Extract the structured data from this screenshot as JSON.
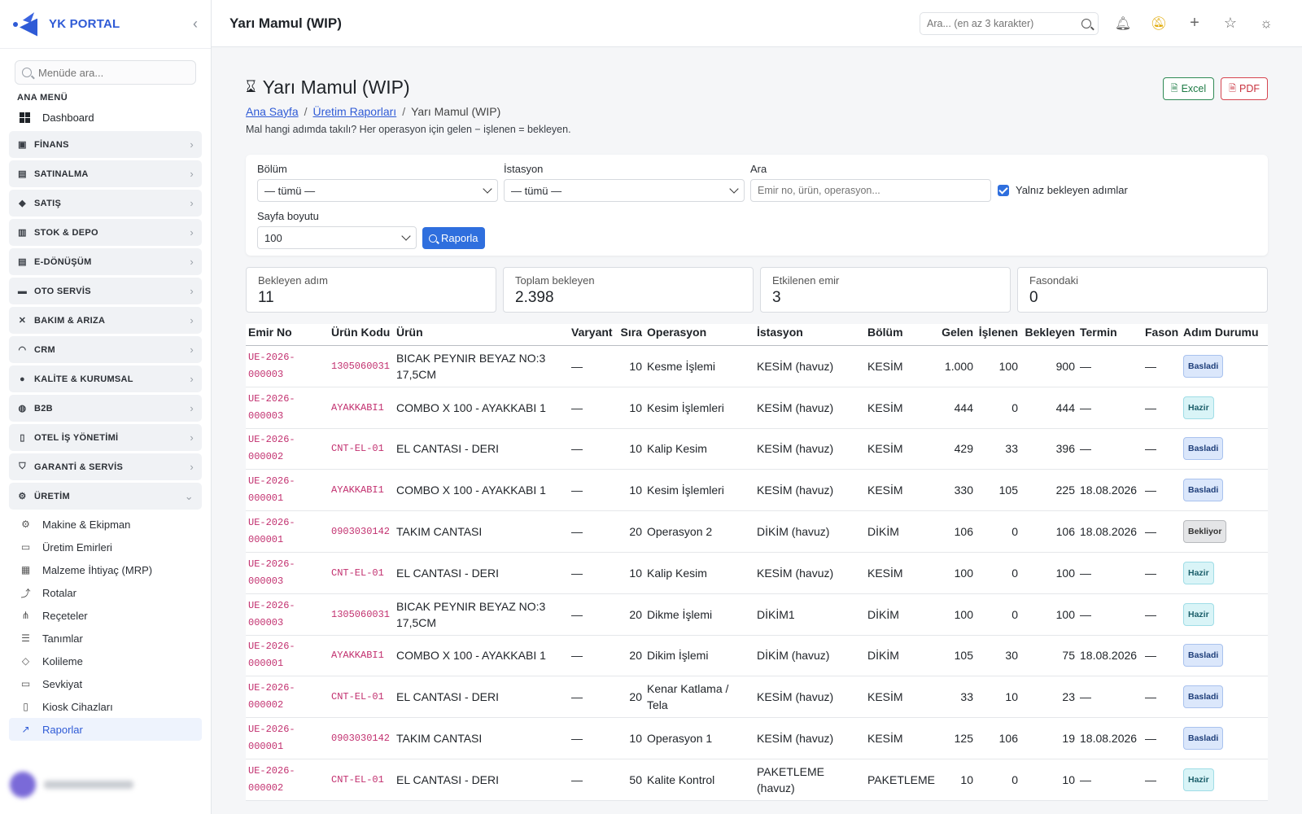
{
  "sidebar": {
    "brand": "YK PORTAL",
    "search_placeholder": "Menüde ara...",
    "heading": "ANA MENÜ",
    "dashboard": "Dashboard",
    "groups": [
      {
        "label": "FİNANS",
        "icon": "finance-icon"
      },
      {
        "label": "SATINALMA",
        "icon": "bag-icon"
      },
      {
        "label": "SATIŞ",
        "icon": "tag-icon"
      },
      {
        "label": "STOK & DEPO",
        "icon": "box-icon"
      },
      {
        "label": "E-DÖNÜŞÜM",
        "icon": "document-icon"
      },
      {
        "label": "OTO SERVİS",
        "icon": "car-icon"
      },
      {
        "label": "BAKIM & ARIZA",
        "icon": "tools-icon"
      },
      {
        "label": "CRM",
        "icon": "headset-icon"
      },
      {
        "label": "KALİTE & KURUMSAL",
        "icon": "badge-check-icon"
      },
      {
        "label": "B2B",
        "icon": "globe-icon"
      },
      {
        "label": "OTEL İŞ YÖNETİMİ",
        "icon": "building-icon"
      },
      {
        "label": "GARANTİ & SERVİS",
        "icon": "shield-icon"
      },
      {
        "label": "ÜRETİM",
        "icon": "gear-icon"
      }
    ],
    "sub_items": [
      {
        "label": "Makine & Ekipman",
        "icon": "gear-icon"
      },
      {
        "label": "Üretim Emirleri",
        "icon": "clipboard-icon"
      },
      {
        "label": "Malzeme İhtiyaç (MRP)",
        "icon": "calculator-icon"
      },
      {
        "label": "Rotalar",
        "icon": "signpost-icon"
      },
      {
        "label": "Reçeteler",
        "icon": "diagram-icon"
      },
      {
        "label": "Tanımlar",
        "icon": "sliders-icon"
      },
      {
        "label": "Kolileme",
        "icon": "package-icon"
      },
      {
        "label": "Sevkiyat",
        "icon": "truck-icon"
      },
      {
        "label": "Kiosk Cihazları",
        "icon": "tablet-icon"
      },
      {
        "label": "Raporlar",
        "icon": "chart-icon"
      }
    ]
  },
  "topbar": {
    "title": "Yarı Mamul (WIP)",
    "search_placeholder": "Ara... (en az 3 karakter)"
  },
  "page": {
    "title": "Yarı Mamul (WIP)",
    "breadcrumb": [
      "Ana Sayfa",
      "Üretim Raporları",
      "Yarı Mamul (WIP)"
    ],
    "description": "Mal hangi adımda takılı? Her operasyon için gelen − işlenen = bekleyen.",
    "excel": "Excel",
    "pdf": "PDF"
  },
  "filters": {
    "bolum_label": "Bölüm",
    "bolum_value": "— tümü —",
    "istasyon_label": "İstasyon",
    "istasyon_value": "— tümü —",
    "ara_label": "Ara",
    "ara_placeholder": "Emir no, ürün, operasyon...",
    "only_pending": "Yalnız bekleyen adımlar",
    "page_size_label": "Sayfa boyutu",
    "page_size_value": "100",
    "report_button": "Raporla"
  },
  "kpis": [
    {
      "label": "Bekleyen adım",
      "value": "11"
    },
    {
      "label": "Toplam bekleyen",
      "value": "2.398"
    },
    {
      "label": "Etkilenen emir",
      "value": "3"
    },
    {
      "label": "Fasondaki",
      "value": "0"
    }
  ],
  "table": {
    "headers": [
      "Emir No",
      "Ürün Kodu",
      "Ürün",
      "Varyant",
      "Sıra",
      "Operasyon",
      "İstasyon",
      "Bölüm",
      "Gelen",
      "İşlenen",
      "Bekleyen",
      "Termin",
      "Fason",
      "Adım Durumu"
    ],
    "rows": [
      {
        "emir": "UE-2026-000003",
        "kod": "1305060031",
        "urun": "BICAK PEYNIR BEYAZ NO:3 17,5CM",
        "varyant": "—",
        "sira": "10",
        "op": "Kesme İşlemi",
        "ist": "KESİM (havuz)",
        "bolum": "KESİM",
        "gelen": "1.000",
        "islenen": "100",
        "bekleyen": "900",
        "termin": "—",
        "fason": "—",
        "durum": "Basladi",
        "status": "basladi"
      },
      {
        "emir": "UE-2026-000003",
        "kod": "AYAKKABI1",
        "urun": "COMBO X 100 - AYAKKABI 1",
        "varyant": "—",
        "sira": "10",
        "op": "Kesim İşlemleri",
        "ist": "KESİM (havuz)",
        "bolum": "KESİM",
        "gelen": "444",
        "islenen": "0",
        "bekleyen": "444",
        "termin": "—",
        "fason": "—",
        "durum": "Hazir",
        "status": "hazir"
      },
      {
        "emir": "UE-2026-000002",
        "kod": "CNT-EL-01",
        "urun": "EL CANTASI - DERI",
        "varyant": "—",
        "sira": "10",
        "op": "Kalip Kesim",
        "ist": "KESİM (havuz)",
        "bolum": "KESİM",
        "gelen": "429",
        "islenen": "33",
        "bekleyen": "396",
        "termin": "—",
        "fason": "—",
        "durum": "Basladi",
        "status": "basladi"
      },
      {
        "emir": "UE-2026-000001",
        "kod": "AYAKKABI1",
        "urun": "COMBO X 100 - AYAKKABI 1",
        "varyant": "—",
        "sira": "10",
        "op": "Kesim İşlemleri",
        "ist": "KESİM (havuz)",
        "bolum": "KESİM",
        "gelen": "330",
        "islenen": "105",
        "bekleyen": "225",
        "termin": "18.08.2026",
        "fason": "—",
        "durum": "Basladi",
        "status": "basladi"
      },
      {
        "emir": "UE-2026-000001",
        "kod": "0903030142",
        "urun": "TAKIM CANTASI",
        "varyant": "—",
        "sira": "20",
        "op": "Operasyon 2",
        "ist": "DİKİM (havuz)",
        "bolum": "DİKİM",
        "gelen": "106",
        "islenen": "0",
        "bekleyen": "106",
        "termin": "18.08.2026",
        "fason": "—",
        "durum": "Bekliyor",
        "status": "bekliyor"
      },
      {
        "emir": "UE-2026-000003",
        "kod": "CNT-EL-01",
        "urun": "EL CANTASI - DERI",
        "varyant": "—",
        "sira": "10",
        "op": "Kalip Kesim",
        "ist": "KESİM (havuz)",
        "bolum": "KESİM",
        "gelen": "100",
        "islenen": "0",
        "bekleyen": "100",
        "termin": "—",
        "fason": "—",
        "durum": "Hazir",
        "status": "hazir"
      },
      {
        "emir": "UE-2026-000003",
        "kod": "1305060031",
        "urun": "BICAK PEYNIR BEYAZ NO:3 17,5CM",
        "varyant": "—",
        "sira": "20",
        "op": "Dikme İşlemi",
        "ist": "DİKİM1",
        "bolum": "DİKİM",
        "gelen": "100",
        "islenen": "0",
        "bekleyen": "100",
        "termin": "—",
        "fason": "—",
        "durum": "Hazir",
        "status": "hazir"
      },
      {
        "emir": "UE-2026-000001",
        "kod": "AYAKKABI1",
        "urun": "COMBO X 100 - AYAKKABI 1",
        "varyant": "—",
        "sira": "20",
        "op": "Dikim İşlemi",
        "ist": "DİKİM (havuz)",
        "bolum": "DİKİM",
        "gelen": "105",
        "islenen": "30",
        "bekleyen": "75",
        "termin": "18.08.2026",
        "fason": "—",
        "durum": "Basladi",
        "status": "basladi"
      },
      {
        "emir": "UE-2026-000002",
        "kod": "CNT-EL-01",
        "urun": "EL CANTASI - DERI",
        "varyant": "—",
        "sira": "20",
        "op": "Kenar Katlama / Tela",
        "ist": "KESİM (havuz)",
        "bolum": "KESİM",
        "gelen": "33",
        "islenen": "10",
        "bekleyen": "23",
        "termin": "—",
        "fason": "—",
        "durum": "Basladi",
        "status": "basladi"
      },
      {
        "emir": "UE-2026-000001",
        "kod": "0903030142",
        "urun": "TAKIM CANTASI",
        "varyant": "—",
        "sira": "10",
        "op": "Operasyon 1",
        "ist": "KESİM (havuz)",
        "bolum": "KESİM",
        "gelen": "125",
        "islenen": "106",
        "bekleyen": "19",
        "termin": "18.08.2026",
        "fason": "—",
        "durum": "Basladi",
        "status": "basladi"
      },
      {
        "emir": "UE-2026-000002",
        "kod": "CNT-EL-01",
        "urun": "EL CANTASI - DERI",
        "varyant": "—",
        "sira": "50",
        "op": "Kalite Kontrol",
        "ist": "PAKETLEME (havuz)",
        "bolum": "PAKETLEME",
        "gelen": "10",
        "islenen": "0",
        "bekleyen": "10",
        "termin": "—",
        "fason": "—",
        "durum": "Hazir",
        "status": "hazir"
      }
    ]
  },
  "colors": {
    "accent": "#2f6fde",
    "code": "#c2306f",
    "excel": "#1e7b45",
    "pdf": "#c8333f"
  }
}
